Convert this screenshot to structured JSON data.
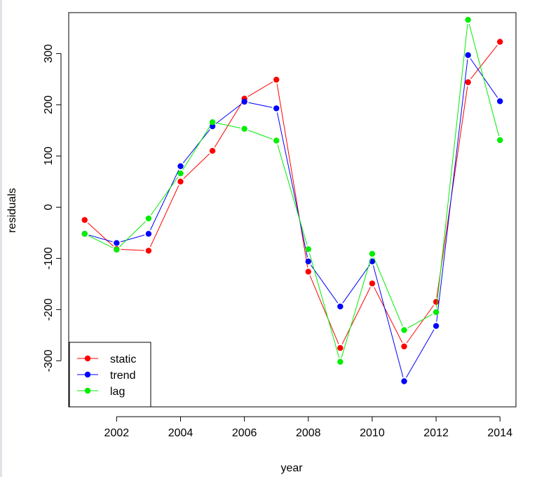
{
  "chart_data": {
    "type": "line",
    "xlabel": "year",
    "ylabel": "residuals",
    "xlim": [
      2000.5,
      2014.5
    ],
    "ylim": [
      -390,
      380
    ],
    "x_ticks": [
      2002,
      2004,
      2006,
      2008,
      2010,
      2012,
      2014
    ],
    "y_ticks": [
      -300,
      -200,
      -100,
      0,
      100,
      200,
      300
    ],
    "x": [
      2001,
      2002,
      2003,
      2004,
      2005,
      2006,
      2007,
      2008,
      2009,
      2010,
      2011,
      2012,
      2013,
      2014
    ],
    "series": [
      {
        "name": "static",
        "color": "#ff0000",
        "values": [
          -25,
          -82,
          -85,
          50,
          110,
          212,
          249,
          -126,
          -275,
          -149,
          -272,
          -185,
          244,
          323
        ]
      },
      {
        "name": "trend",
        "color": "#0000ff",
        "values": [
          -52,
          -70,
          -52,
          80,
          158,
          206,
          193,
          -106,
          -194,
          -106,
          -340,
          -232,
          297,
          207
        ]
      },
      {
        "name": "lag",
        "color": "#00ee00",
        "values": [
          -52,
          -83,
          -22,
          66,
          166,
          153,
          130,
          -82,
          -302,
          -91,
          -240,
          -205,
          366,
          131
        ]
      }
    ],
    "legend": "bottom-left",
    "grid": false
  }
}
